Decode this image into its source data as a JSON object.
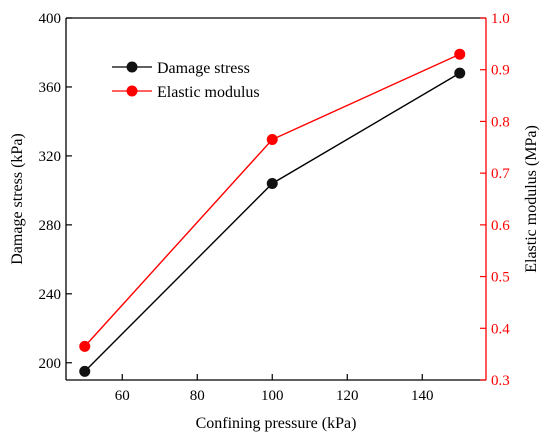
{
  "chart_data": {
    "type": "line",
    "xlabel": "Confining pressure (kPa)",
    "x": [
      50,
      100,
      150
    ],
    "xlim": [
      45,
      157
    ],
    "xticks": [
      60,
      80,
      100,
      120,
      140
    ],
    "y_left": {
      "label": "Damage stress (kPa)",
      "lim": [
        190,
        400
      ],
      "ticks": [
        200,
        240,
        280,
        320,
        360,
        400
      ],
      "color": "#000000"
    },
    "y_right": {
      "label": "Elastic modulus (MPa)",
      "lim": [
        0.3,
        1.0
      ],
      "ticks": [
        "0.3",
        "0.4",
        "0.5",
        "0.6",
        "0.7",
        "0.8",
        "0.9",
        "1.0"
      ],
      "color": "#ff0000"
    },
    "series": [
      {
        "name": "Damage stress",
        "axis": "left",
        "values": [
          195,
          304,
          368
        ],
        "color": "#000000"
      },
      {
        "name": "Elastic modulus",
        "axis": "right",
        "values": [
          0.365,
          0.765,
          0.93
        ],
        "color": "#ff0000"
      }
    ],
    "legend": "top-left",
    "grid": false
  }
}
